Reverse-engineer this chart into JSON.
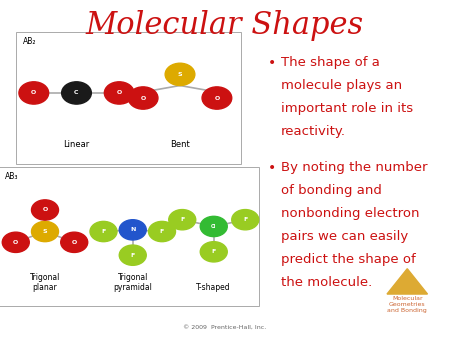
{
  "title": "Molecular Shapes",
  "title_color": "#cc1111",
  "title_fontsize": 22,
  "background_color": "#ffffff",
  "bullet_color": "#cc1111",
  "bullet_text_color": "#cc1111",
  "bullet1_lines": [
    "The shape of a",
    "molecule plays an",
    "important role in its",
    "reactivity."
  ],
  "bullet2_lines": [
    "By noting the number",
    "of bonding and",
    "nonbonding electron",
    "pairs we can easily",
    "predict the shape of",
    "the molecule."
  ],
  "bullet_fontsize": 9.5,
  "box1_label": "AB₂",
  "box1_sub1_label": "Linear",
  "box1_sub2_label": "Bent",
  "box2_label": "AB₃",
  "box2_sub1_label": "Trigonal\nplanar",
  "box2_sub2_label": "Trigonal\npyramidal",
  "box2_sub3_label": "T-shaped",
  "watermark_line1": "Molecular",
  "watermark_line2": "Geometries",
  "watermark_line3": "and Bonding",
  "watermark_copy": "© 2009  Prentice-Hall, Inc.",
  "watermark_color": "#cc6633",
  "watermark_copy_color": "#666666"
}
